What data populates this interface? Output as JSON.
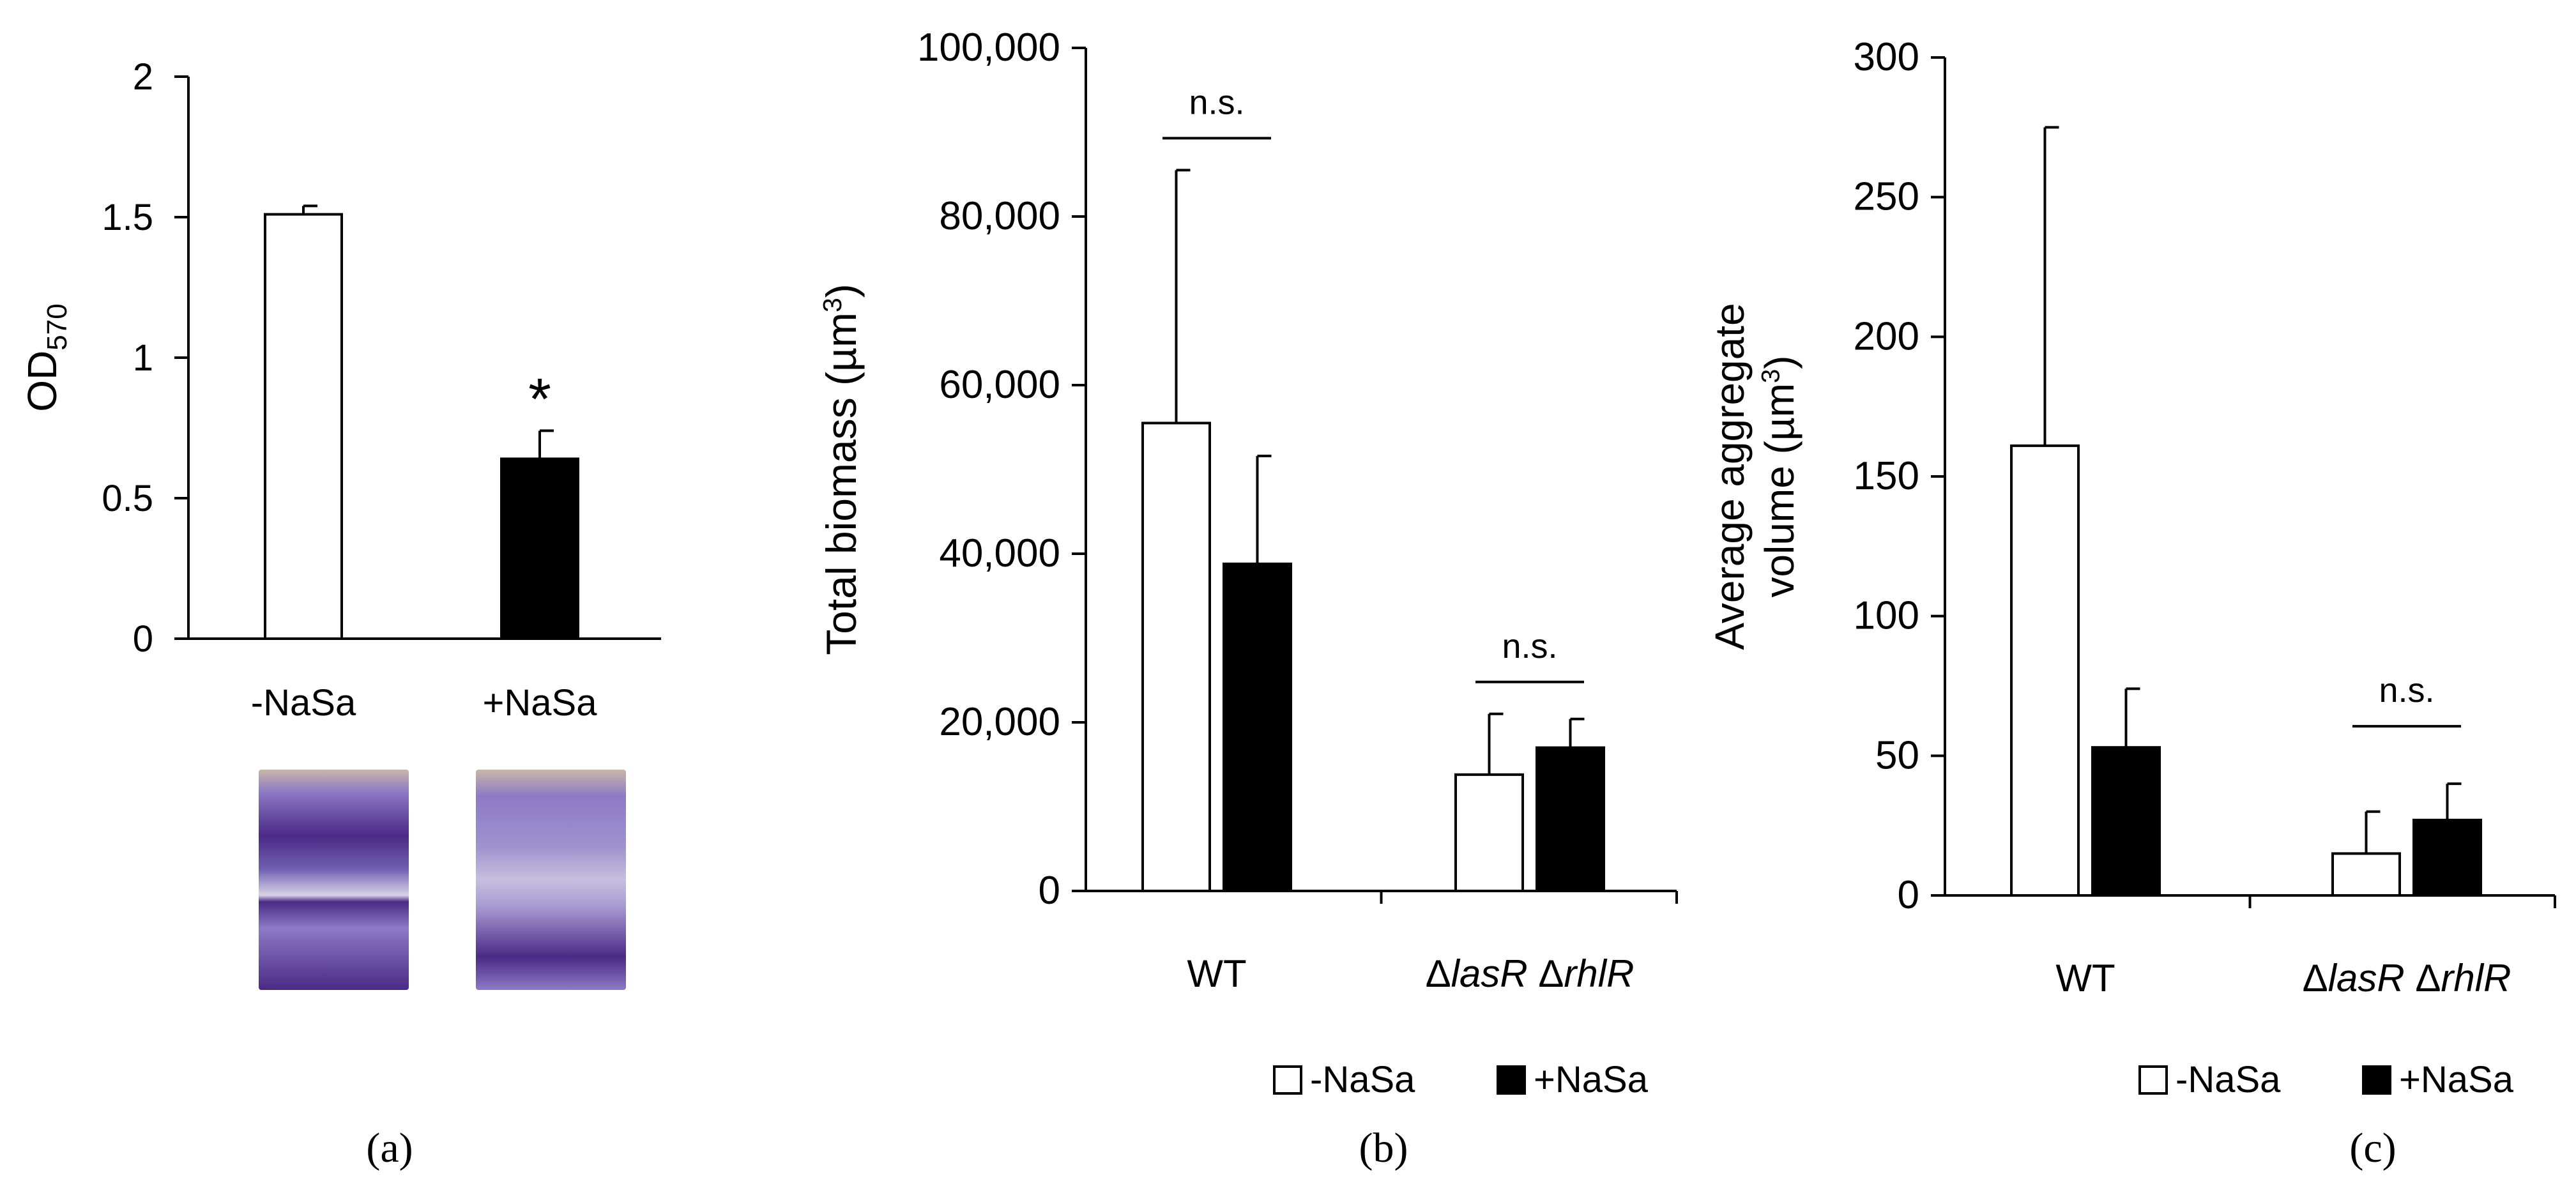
{
  "figure": {
    "labels": [
      "(a)",
      "(b)",
      "(c)"
    ]
  },
  "chart_data": [
    {
      "type": "bar",
      "categories": [
        "-NaSa",
        "+NaSa"
      ],
      "values": [
        1.51,
        0.64
      ],
      "errors": [
        0.03,
        0.1
      ],
      "fills": [
        "#ffffff",
        "#000000"
      ],
      "ylabel_main": "OD",
      "ylabel_sub": "570",
      "ylim": [
        0,
        2
      ],
      "yticks": [
        "0",
        "0.5",
        "1",
        "1.5",
        "2"
      ],
      "significance": "*",
      "images": [
        {
          "icon": "crystal-violet-well-negative",
          "caption": ""
        },
        {
          "icon": "crystal-violet-well-positive",
          "caption": ""
        }
      ],
      "colors": {
        "violet_dark": "#4a2a86",
        "violet_light": "#8d7ac4",
        "background": "#c9b7a8"
      }
    },
    {
      "type": "bar",
      "categories": [
        "WT",
        "ΔlasR ΔrhlR"
      ],
      "category_parts": [
        [
          {
            "t": "WT",
            "i": false
          }
        ],
        [
          {
            "t": "Δ",
            "i": false
          },
          {
            "t": "lasR",
            "i": true
          },
          {
            "t": " Δ",
            "i": false
          },
          {
            "t": "rhlR",
            "i": true
          }
        ]
      ],
      "series": [
        {
          "name": "-NaSa",
          "values": [
            55500,
            13800
          ],
          "errors": [
            30000,
            7200
          ],
          "fill": "#ffffff"
        },
        {
          "name": "+NaSa",
          "values": [
            38800,
            17000
          ],
          "errors": [
            12800,
            3400
          ],
          "fill": "#000000"
        }
      ],
      "ylabel_parts": [
        "Total biomass (µm",
        "3",
        ")"
      ],
      "ylim": [
        0,
        100000
      ],
      "yticks": [
        "0",
        "20,000",
        "40,000",
        "60,000",
        "80,000",
        "100,000"
      ],
      "significance": [
        "n.s.",
        "n.s."
      ],
      "legend": {
        "position": "bottom",
        "entries": [
          "-NaSa",
          "+NaSa"
        ]
      }
    },
    {
      "type": "bar",
      "categories": [
        "WT",
        "ΔlasR ΔrhlR"
      ],
      "category_parts": [
        [
          {
            "t": "WT",
            "i": false
          }
        ],
        [
          {
            "t": "Δ",
            "i": false
          },
          {
            "t": "lasR",
            "i": true
          },
          {
            "t": " Δ",
            "i": false
          },
          {
            "t": "rhlR",
            "i": true
          }
        ]
      ],
      "series": [
        {
          "name": "-NaSa",
          "values": [
            161,
            15
          ],
          "errors": [
            114,
            15
          ],
          "fill": "#ffffff"
        },
        {
          "name": "+NaSa",
          "values": [
            53,
            27
          ],
          "errors": [
            21,
            13
          ],
          "fill": "#000000"
        }
      ],
      "ylabel_line1": "Average aggregate",
      "ylabel_parts": [
        "volume (µm",
        "3",
        ")"
      ],
      "ylim": [
        0,
        300
      ],
      "yticks": [
        "0",
        "50",
        "100",
        "150",
        "200",
        "250",
        "300"
      ],
      "significance": [
        "n.s.",
        "n.s."
      ],
      "legend": {
        "position": "bottom",
        "entries": [
          "-NaSa",
          "+NaSa"
        ]
      }
    }
  ]
}
